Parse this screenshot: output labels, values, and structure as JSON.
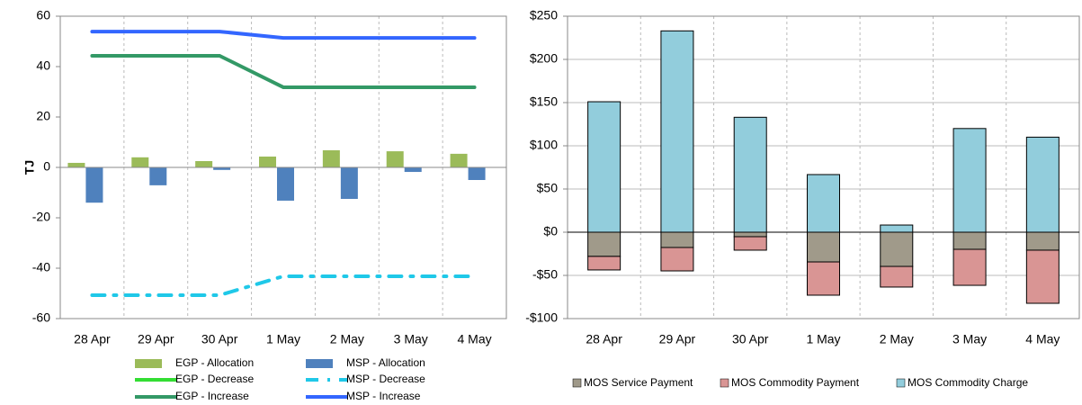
{
  "chart_data": [
    {
      "type": "combo",
      "ylabel": "TJ",
      "categories": [
        "28 Apr",
        "29 Apr",
        "30 Apr",
        "1 May",
        "2 May",
        "3 May",
        "4 May"
      ],
      "ylim": [
        -60,
        60
      ],
      "yticks": [
        -60,
        -40,
        -20,
        0,
        20,
        40,
        60
      ],
      "grid": "vertical-dashed",
      "series": [
        {
          "name": "EGP - Allocation",
          "kind": "bar",
          "color": "#9bbb59",
          "values": [
            1.8,
            4,
            2.5,
            4.3,
            6.8,
            6.4,
            5.4
          ]
        },
        {
          "name": "MSP - Allocation",
          "kind": "bar",
          "color": "#4f81bd",
          "values": [
            -14,
            -7.1,
            -1,
            -13.2,
            -12.5,
            -1.8,
            -5
          ]
        },
        {
          "name": "EGP - Decrease",
          "kind": "line",
          "color": "#33dd33",
          "dash": "solid",
          "values": [
            null,
            null,
            null,
            null,
            null,
            null,
            null
          ]
        },
        {
          "name": "MSP - Decrease",
          "kind": "line",
          "color": "#1fc8e8",
          "dash": "dashdot",
          "values": [
            -50.7,
            -50.7,
            -50.7,
            -43.2,
            -43.2,
            -43.2,
            -43.2
          ]
        },
        {
          "name": "EGP - Increase",
          "kind": "line",
          "color": "#339966",
          "dash": "solid",
          "values": [
            44.3,
            44.3,
            44.3,
            31.8,
            31.8,
            31.8,
            31.8
          ]
        },
        {
          "name": "MSP - Increase",
          "kind": "line",
          "color": "#3366ff",
          "dash": "solid",
          "values": [
            53.9,
            53.9,
            53.9,
            51.4,
            51.4,
            51.4,
            51.4
          ]
        }
      ]
    },
    {
      "type": "stacked_bar",
      "categories": [
        "28 Apr",
        "29 Apr",
        "30 Apr",
        "1 May",
        "2 May",
        "3 May",
        "4 May"
      ],
      "ylim": [
        -100,
        250
      ],
      "yticks": [
        {
          "value": -100,
          "label": "-$100"
        },
        {
          "value": -50,
          "label": "-$50"
        },
        {
          "value": 0,
          "label": "$0"
        },
        {
          "value": 50,
          "label": "$50"
        },
        {
          "value": 100,
          "label": "$100"
        },
        {
          "value": 150,
          "label": "$150"
        },
        {
          "value": 200,
          "label": "$200"
        },
        {
          "value": 250,
          "label": "$250"
        }
      ],
      "grid": "both",
      "series": [
        {
          "name": "MOS Service Payment",
          "color": "#a09a8a",
          "values": [
            -28,
            -17.7,
            -5.2,
            -34.4,
            -39.6,
            -19.8,
            -20.8
          ]
        },
        {
          "name": "MOS Commodity Payment",
          "color": "#d99594",
          "values": [
            -15.7,
            -27.1,
            -15.6,
            -38.5,
            -23.9,
            -41.7,
            -61.5
          ]
        },
        {
          "name": "MOS Commodity Charge",
          "color": "#92cddc",
          "values": [
            151,
            233,
            133,
            66.7,
            8.3,
            120,
            110
          ]
        }
      ]
    }
  ]
}
